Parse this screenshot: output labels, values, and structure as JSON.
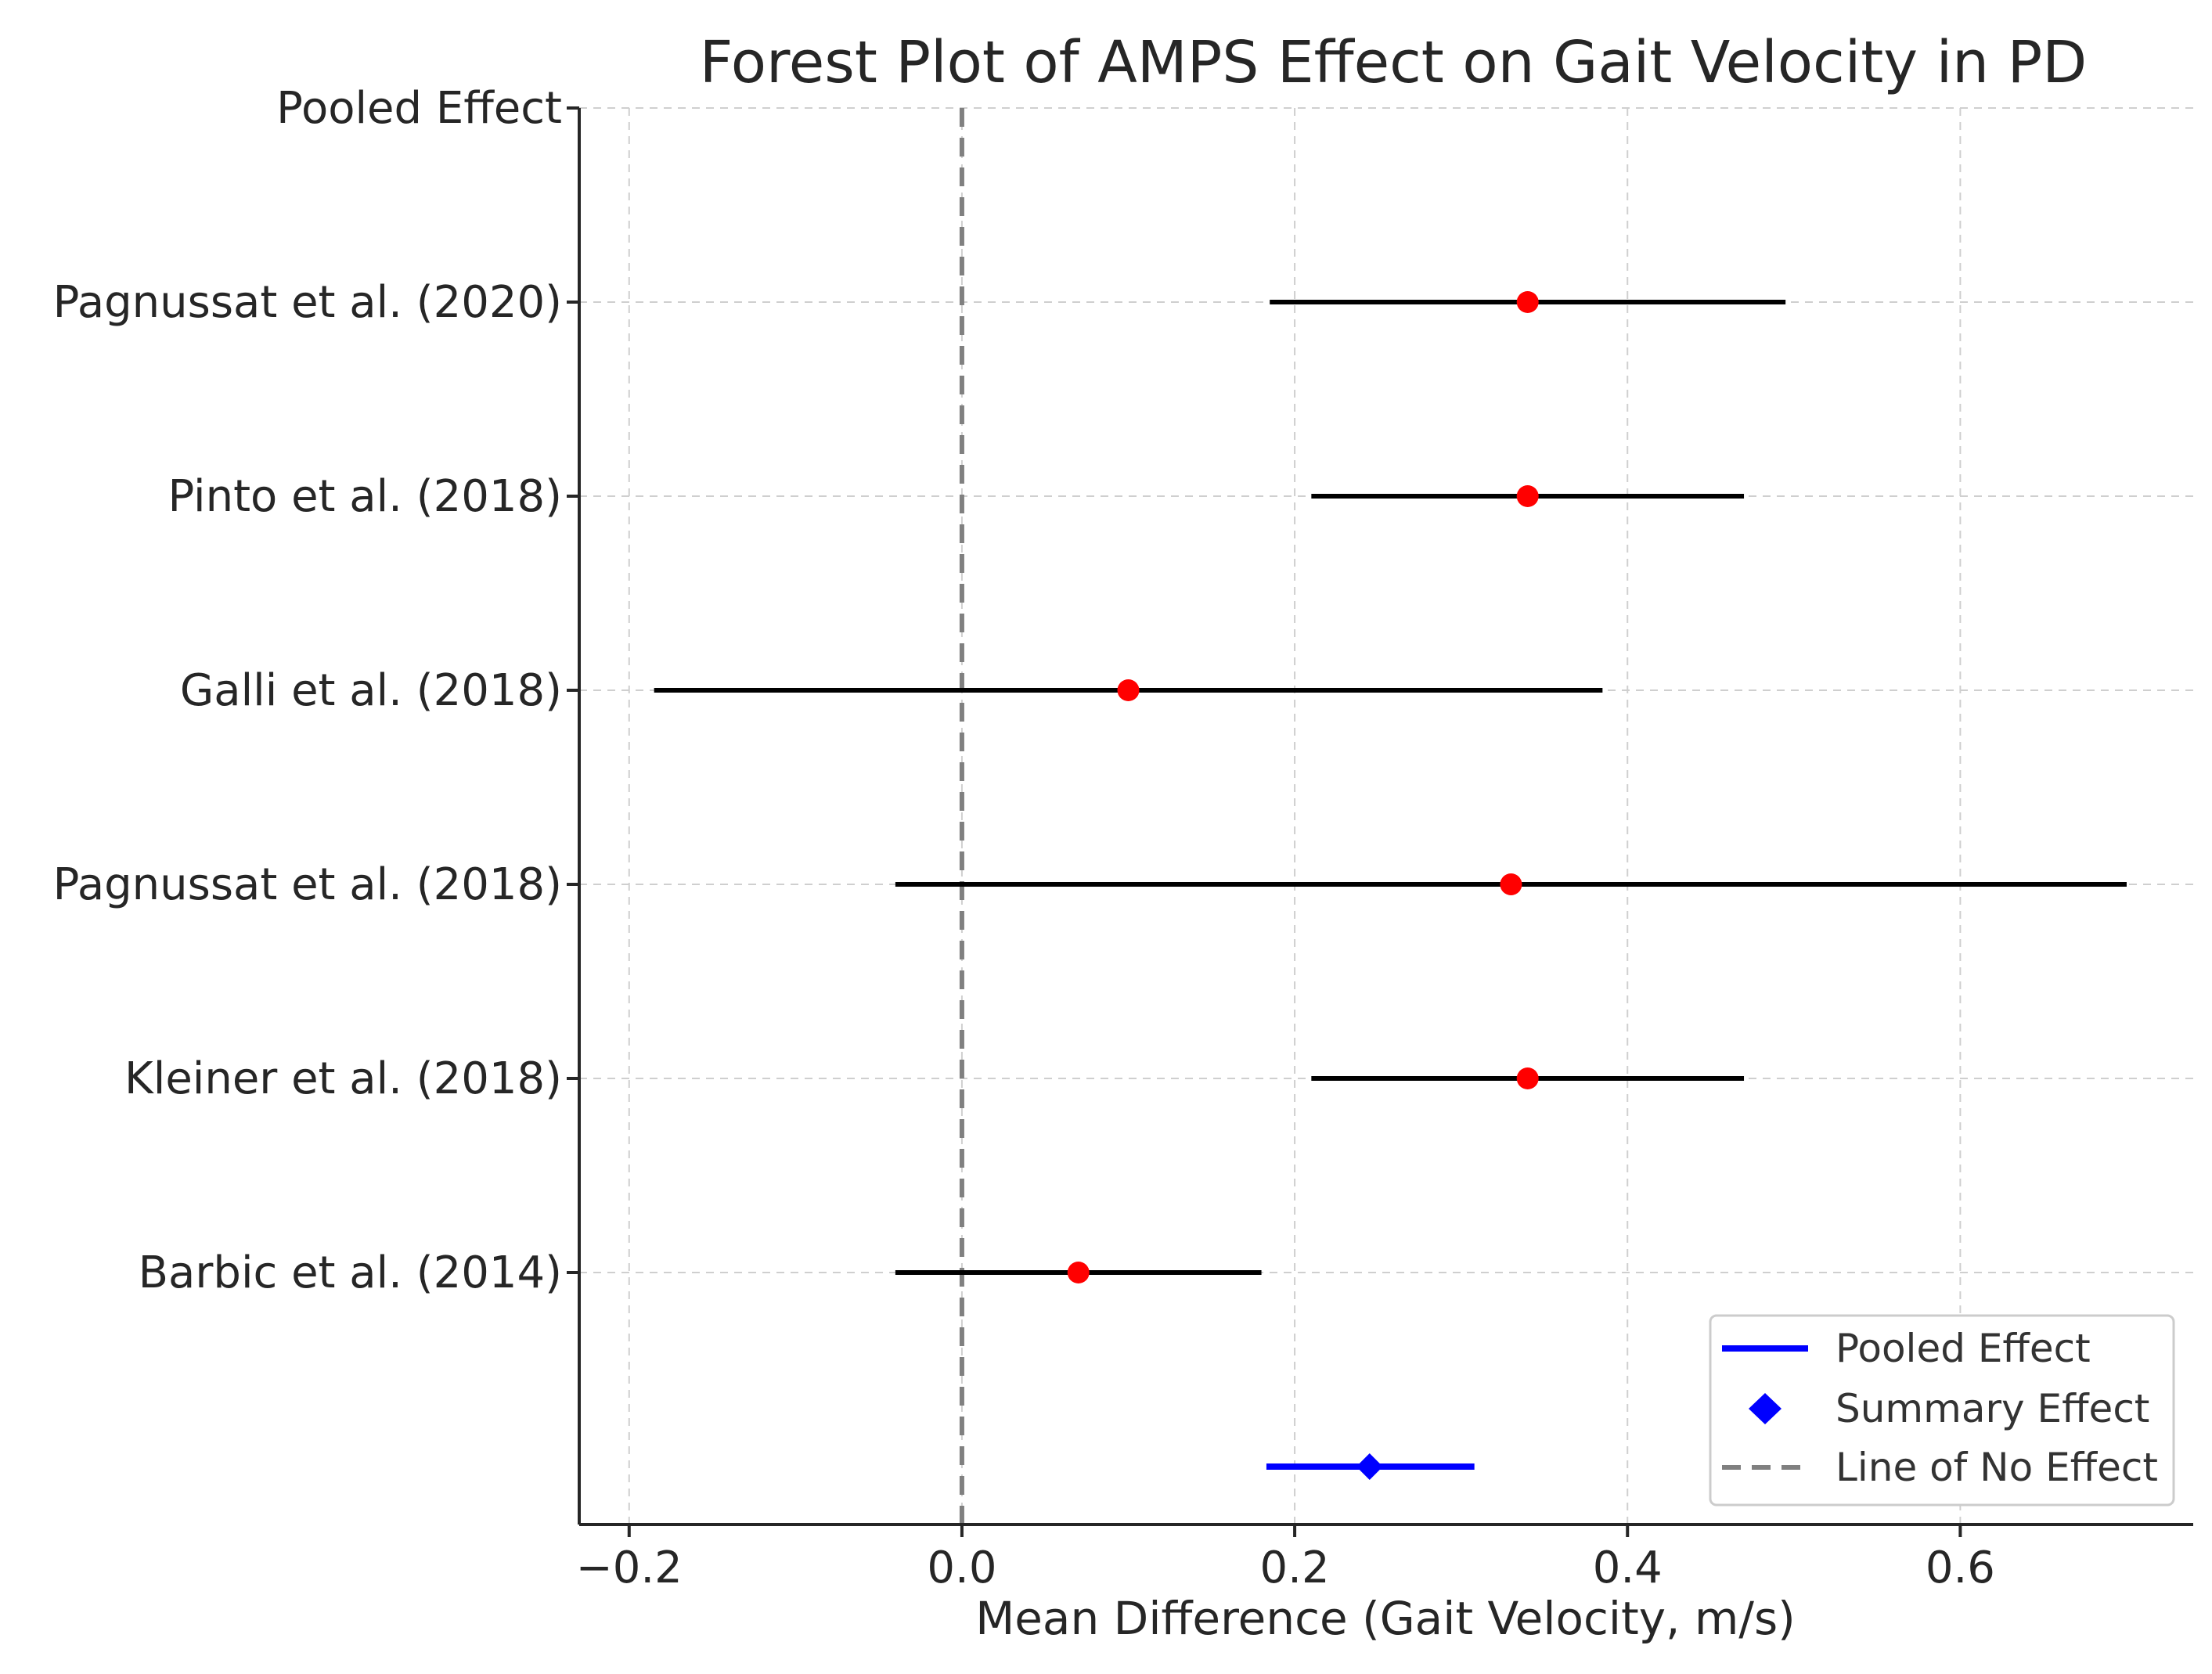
{
  "chart_data": {
    "type": "forest",
    "title": "Forest Plot of AMPS Effect on Gait Velocity in PD",
    "xlabel": "Mean Difference (Gait Velocity, m/s)",
    "ylabel": "",
    "xlim": [
      -0.23,
      0.74
    ],
    "xticks": [
      -0.2,
      0.0,
      0.2,
      0.4,
      0.6
    ],
    "xtick_labels": [
      "−0.2",
      "0.0",
      "0.2",
      "0.4",
      "0.6"
    ],
    "y_labels": [
      "Barbic et al. (2014)",
      "Kleiner et al. (2018)",
      "Pagnussat et al. (2018)",
      "Galli et al. (2018)",
      "Pinto et al. (2018)",
      "Pagnussat et al. (2020)",
      "Pooled Effect"
    ],
    "studies": [
      {
        "name": "Barbic et al. (2014)",
        "mean": 0.07,
        "ci_low": -0.04,
        "ci_high": 0.18
      },
      {
        "name": "Kleiner et al. (2018)",
        "mean": 0.34,
        "ci_low": 0.21,
        "ci_high": 0.47
      },
      {
        "name": "Pagnussat et al. (2018)",
        "mean": 0.33,
        "ci_low": -0.04,
        "ci_high": 0.7
      },
      {
        "name": "Galli et al. (2018)",
        "mean": 0.1,
        "ci_low": -0.185,
        "ci_high": 0.385
      },
      {
        "name": "Pinto et al. (2018)",
        "mean": 0.34,
        "ci_low": 0.21,
        "ci_high": 0.47
      },
      {
        "name": "Pagnussat et al. (2020)",
        "mean": 0.34,
        "ci_low": 0.185,
        "ci_high": 0.495
      }
    ],
    "pooled": {
      "name": "Pooled Effect",
      "mean": 0.245,
      "ci_low": 0.183,
      "ci_high": 0.308
    },
    "reference_line": 0.0,
    "grid": true,
    "legend": {
      "position": "bottom-right",
      "entries": [
        "Pooled Effect",
        "Summary Effect",
        "Line of No Effect"
      ]
    },
    "colors": {
      "study_point": "#ff0000",
      "study_ci": "#000000",
      "pooled": "#0000ff",
      "reference": "#808080"
    }
  }
}
